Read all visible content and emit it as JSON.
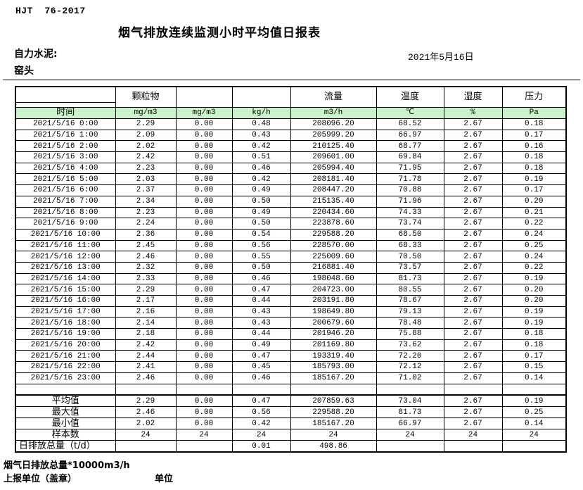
{
  "header": {
    "standard_no": "HJT  76-2017",
    "title": "烟气排放连续监测小时平均值日报表",
    "company": "自力水泥:",
    "stack_name": "窑头",
    "date": "2021年5月16日"
  },
  "colors": {
    "units_row_bg": "#CCF2CC",
    "border": "#000000",
    "page_bg": "#FFFFFF"
  },
  "table": {
    "group_headers": [
      "",
      "颗粒物",
      "",
      "",
      "流量",
      "温度",
      "湿度",
      "压力"
    ],
    "units_row": [
      "时间",
      "mg/m3",
      "mg/m3",
      "kg/h",
      "m3/h",
      "℃",
      "%",
      "Pa"
    ],
    "rows": [
      [
        "2021/5/16 0:00",
        "2.29",
        "0.00",
        "0.48",
        "208096.20",
        "68.52",
        "2.67",
        "0.18"
      ],
      [
        "2021/5/16 1:00",
        "2.09",
        "0.00",
        "0.43",
        "205999.20",
        "66.97",
        "2.67",
        "0.17"
      ],
      [
        "2021/5/16 2:00",
        "2.02",
        "0.00",
        "0.42",
        "210125.40",
        "68.77",
        "2.67",
        "0.16"
      ],
      [
        "2021/5/16 3:00",
        "2.42",
        "0.00",
        "0.51",
        "209601.00",
        "69.84",
        "2.67",
        "0.18"
      ],
      [
        "2021/5/16 4:00",
        "2.23",
        "0.00",
        "0.46",
        "205994.40",
        "71.95",
        "2.67",
        "0.18"
      ],
      [
        "2021/5/16 5:00",
        "2.03",
        "0.00",
        "0.42",
        "208181.40",
        "71.78",
        "2.67",
        "0.19"
      ],
      [
        "2021/5/16 6:00",
        "2.37",
        "0.00",
        "0.49",
        "208447.20",
        "70.88",
        "2.67",
        "0.17"
      ],
      [
        "2021/5/16 7:00",
        "2.34",
        "0.00",
        "0.50",
        "215135.40",
        "71.96",
        "2.67",
        "0.20"
      ],
      [
        "2021/5/16 8:00",
        "2.23",
        "0.00",
        "0.49",
        "220434.60",
        "74.33",
        "2.67",
        "0.21"
      ],
      [
        "2021/5/16 9:00",
        "2.24",
        "0.00",
        "0.50",
        "223878.60",
        "73.74",
        "2.67",
        "0.22"
      ],
      [
        "2021/5/16 10:00",
        "2.36",
        "0.00",
        "0.54",
        "229588.20",
        "68.50",
        "2.67",
        "0.24"
      ],
      [
        "2021/5/16 11:00",
        "2.45",
        "0.00",
        "0.56",
        "228570.00",
        "68.33",
        "2.67",
        "0.25"
      ],
      [
        "2021/5/16 12:00",
        "2.46",
        "0.00",
        "0.55",
        "225009.60",
        "70.50",
        "2.67",
        "0.24"
      ],
      [
        "2021/5/16 13:00",
        "2.32",
        "0.00",
        "0.50",
        "216881.40",
        "73.57",
        "2.67",
        "0.22"
      ],
      [
        "2021/5/16 14:00",
        "2.33",
        "0.00",
        "0.46",
        "198048.60",
        "81.73",
        "2.67",
        "0.19"
      ],
      [
        "2021/5/16 15:00",
        "2.29",
        "0.00",
        "0.47",
        "204723.00",
        "80.55",
        "2.67",
        "0.20"
      ],
      [
        "2021/5/16 16:00",
        "2.17",
        "0.00",
        "0.44",
        "203191.80",
        "78.67",
        "2.67",
        "0.20"
      ],
      [
        "2021/5/16 17:00",
        "2.16",
        "0.00",
        "0.43",
        "198649.80",
        "79.13",
        "2.67",
        "0.19"
      ],
      [
        "2021/5/16 18:00",
        "2.14",
        "0.00",
        "0.43",
        "200679.60",
        "78.48",
        "2.67",
        "0.19"
      ],
      [
        "2021/5/16 19:00",
        "2.18",
        "0.00",
        "0.44",
        "201946.20",
        "75.88",
        "2.67",
        "0.18"
      ],
      [
        "2021/5/16 20:00",
        "2.42",
        "0.00",
        "0.49",
        "201169.80",
        "73.62",
        "2.67",
        "0.18"
      ],
      [
        "2021/5/16 21:00",
        "2.44",
        "0.00",
        "0.47",
        "193319.40",
        "72.20",
        "2.67",
        "0.17"
      ],
      [
        "2021/5/16 22:00",
        "2.41",
        "0.00",
        "0.45",
        "185793.00",
        "72.12",
        "2.67",
        "0.15"
      ],
      [
        "2021/5/16 23:00",
        "2.46",
        "0.00",
        "0.46",
        "185167.20",
        "71.02",
        "2.67",
        "0.14"
      ]
    ],
    "summary_rows": [
      [
        "平均值",
        "2.29",
        "0.00",
        "0.47",
        "207859.63",
        "73.04",
        "2.67",
        "0.19"
      ],
      [
        "最大值",
        "2.46",
        "0.00",
        "0.56",
        "229588.20",
        "81.73",
        "2.67",
        "0.25"
      ],
      [
        "最小值",
        "2.02",
        "0.00",
        "0.42",
        "185167.20",
        "66.97",
        "2.67",
        "0.14"
      ],
      [
        "样本数",
        "24",
        "24",
        "24",
        "24",
        "24",
        "24",
        "24"
      ],
      [
        "日排放总量（t/d）",
        "",
        "",
        "0.01",
        "498.86",
        "",
        "",
        ""
      ]
    ]
  },
  "footer": {
    "note": "烟气日排放总量*10000m3/h",
    "report_unit": "上报单位（盖章）",
    "unit_label": "单位"
  }
}
